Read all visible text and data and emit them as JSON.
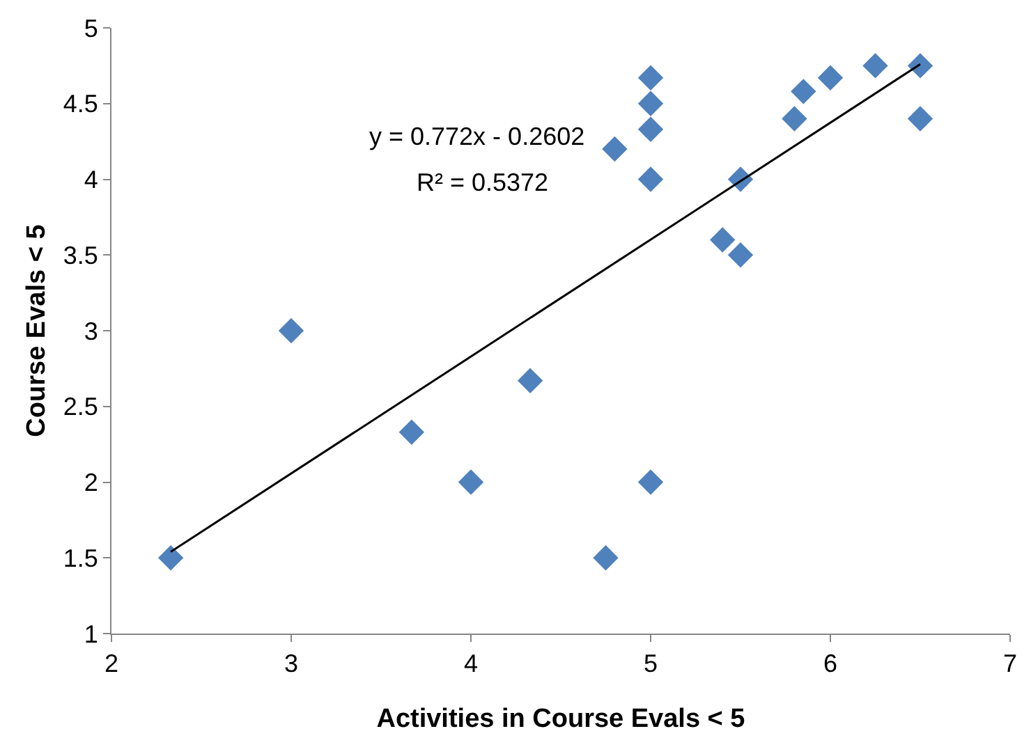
{
  "chart_data": {
    "type": "scatter",
    "xlabel": "Activities in Course Evals < 5",
    "ylabel": "Course Evals < 5",
    "xlim": [
      2,
      7
    ],
    "xticks": [
      2,
      3,
      4,
      5,
      6,
      7
    ],
    "ylim": [
      1,
      5
    ],
    "yticks": [
      1,
      1.5,
      2,
      2.5,
      3,
      3.5,
      4,
      4.5,
      5
    ],
    "grid": false,
    "marker": "diamond",
    "annotations": [
      "y = 0.772x - 0.2602",
      "R² = 0.5372"
    ],
    "series": [
      {
        "color": "#4f81bd",
        "x": [
          2.33,
          3,
          3.67,
          4,
          4.33,
          4.75,
          4.8,
          5,
          5,
          5,
          5,
          5,
          5.4,
          5.5,
          5.5,
          5.8,
          5.85,
          6,
          6.25,
          6.5,
          6.5
        ],
        "values": [
          1.5,
          3,
          2.33,
          2,
          2.67,
          1.5,
          4.2,
          4.67,
          4.5,
          4.33,
          4,
          2,
          3.6,
          3.5,
          4,
          4.4,
          4.58,
          4.67,
          4.75,
          4.75,
          4.4
        ]
      },
      {
        "type": "line",
        "color": "#000000",
        "line_style": "solid",
        "marker": "none",
        "x": [
          2.33,
          6.5
        ],
        "values": [
          1.54,
          4.76
        ]
      }
    ]
  }
}
